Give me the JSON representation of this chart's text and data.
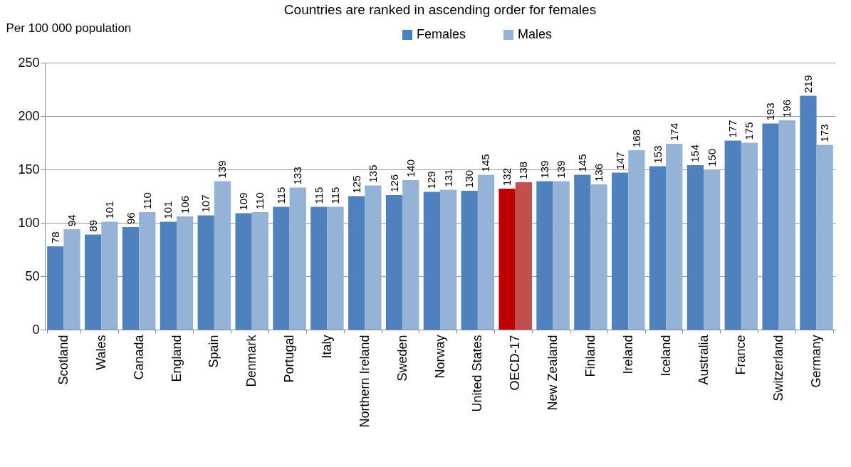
{
  "chart_data": {
    "type": "bar",
    "title": "Countries are ranked in ascending order for females",
    "ylabel": "Per 100 000 population",
    "categories": [
      "Scotland",
      "Wales",
      "Canada",
      "England",
      "Spain",
      "Denmark",
      "Portugal",
      "Italy",
      "Northern Ireland",
      "Sweden",
      "Norway",
      "United States",
      "OECD-17",
      "New Zealand",
      "Finland",
      "Ireland",
      "Iceland",
      "Australia",
      "France",
      "Switzerland",
      "Germany"
    ],
    "series": [
      {
        "name": "Females",
        "color": "#4f81bd",
        "colors": [
          "#4f81bd",
          "#4f81bd",
          "#4f81bd",
          "#4f81bd",
          "#4f81bd",
          "#4f81bd",
          "#4f81bd",
          "#4f81bd",
          "#4f81bd",
          "#4f81bd",
          "#4f81bd",
          "#4f81bd",
          "#c00000",
          "#4f81bd",
          "#4f81bd",
          "#4f81bd",
          "#4f81bd",
          "#4f81bd",
          "#4f81bd",
          "#4f81bd",
          "#4f81bd"
        ],
        "values": [
          78,
          89,
          96,
          101,
          107,
          109,
          115,
          115,
          125,
          126,
          129,
          130,
          132,
          139,
          145,
          147,
          153,
          154,
          177,
          193,
          219
        ]
      },
      {
        "name": "Males",
        "color": "#95b3d7",
        "colors": [
          "#95b3d7",
          "#95b3d7",
          "#95b3d7",
          "#95b3d7",
          "#95b3d7",
          "#95b3d7",
          "#95b3d7",
          "#95b3d7",
          "#95b3d7",
          "#95b3d7",
          "#95b3d7",
          "#95b3d7",
          "#c0504d",
          "#95b3d7",
          "#95b3d7",
          "#95b3d7",
          "#95b3d7",
          "#95b3d7",
          "#95b3d7",
          "#95b3d7",
          "#95b3d7"
        ],
        "values": [
          94,
          101,
          110,
          106,
          139,
          110,
          133,
          115,
          135,
          140,
          131,
          145,
          138,
          139,
          136,
          168,
          174,
          150,
          175,
          196,
          173
        ]
      }
    ],
    "ylim": [
      0,
      250
    ],
    "yticks": [
      0,
      50,
      100,
      150,
      200,
      250
    ],
    "grid": "y",
    "legend": "top",
    "data_labels": true
  }
}
